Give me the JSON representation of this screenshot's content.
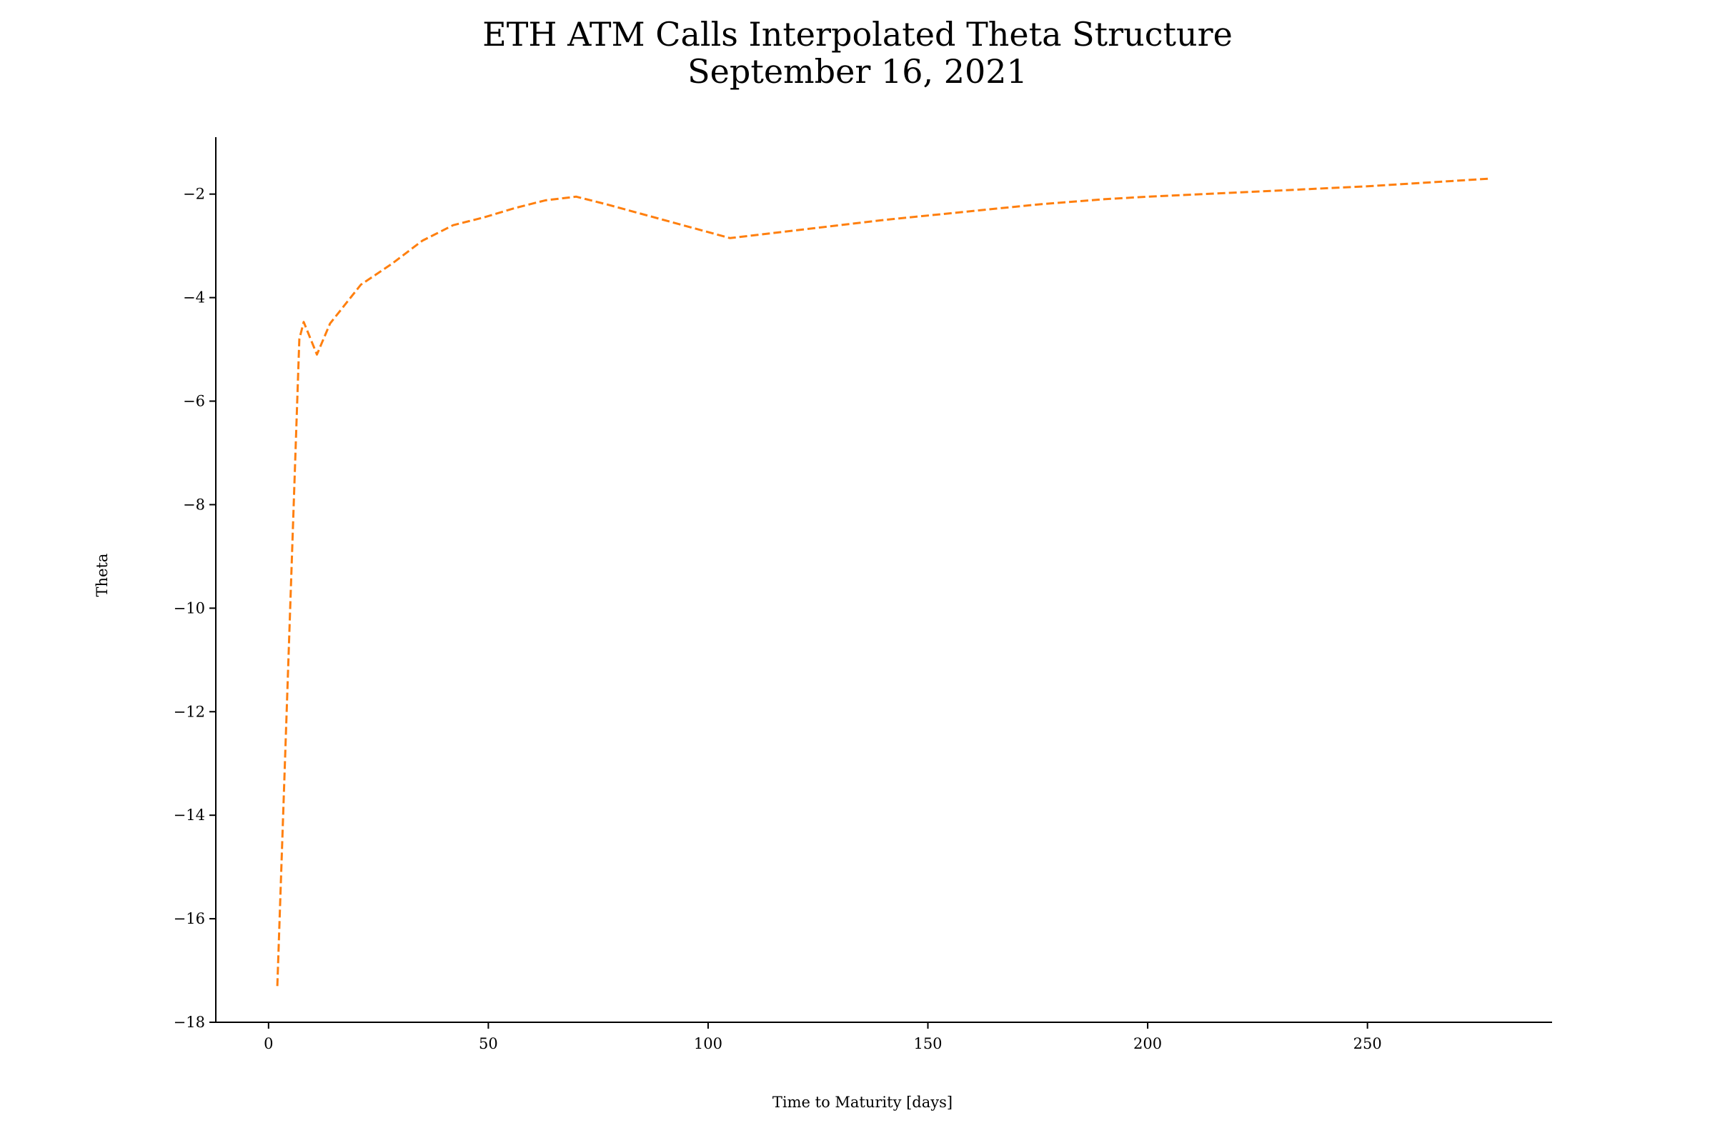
{
  "chart_data": {
    "type": "line",
    "title": "ETH ATM Calls Interpolated Theta Structure",
    "subtitle": "September 16, 2021",
    "xlabel": "Time to Maturity [days]",
    "ylabel": "Theta",
    "xlim": [
      -12,
      292
    ],
    "ylim": [
      -18,
      -0.9
    ],
    "xticks": [
      0,
      50,
      100,
      150,
      200,
      250
    ],
    "yticks": [
      -2,
      -4,
      -6,
      -8,
      -10,
      -12,
      -14,
      -16,
      -18
    ],
    "xtick_labels": [
      "0",
      "50",
      "100",
      "150",
      "200",
      "250"
    ],
    "ytick_labels": [
      "−2",
      "−4",
      "−6",
      "−8",
      "−10",
      "−12",
      "−14",
      "−16",
      "−18"
    ],
    "grid": false,
    "series": [
      {
        "color": "#ff7f0e",
        "line_style": "dashed",
        "x": [
          2,
          7,
          8,
          11,
          14,
          21,
          28,
          35,
          42,
          49,
          56,
          63,
          70,
          77,
          105,
          140,
          175,
          190,
          200,
          225,
          250,
          278
        ],
        "y": [
          -17.3,
          -4.8,
          -4.47,
          -5.1,
          -4.5,
          -3.75,
          -3.35,
          -2.9,
          -2.6,
          -2.45,
          -2.27,
          -2.12,
          -2.05,
          -2.2,
          -2.85,
          -2.5,
          -2.2,
          -2.1,
          -2.05,
          -1.95,
          -1.85,
          -1.7
        ]
      }
    ]
  }
}
